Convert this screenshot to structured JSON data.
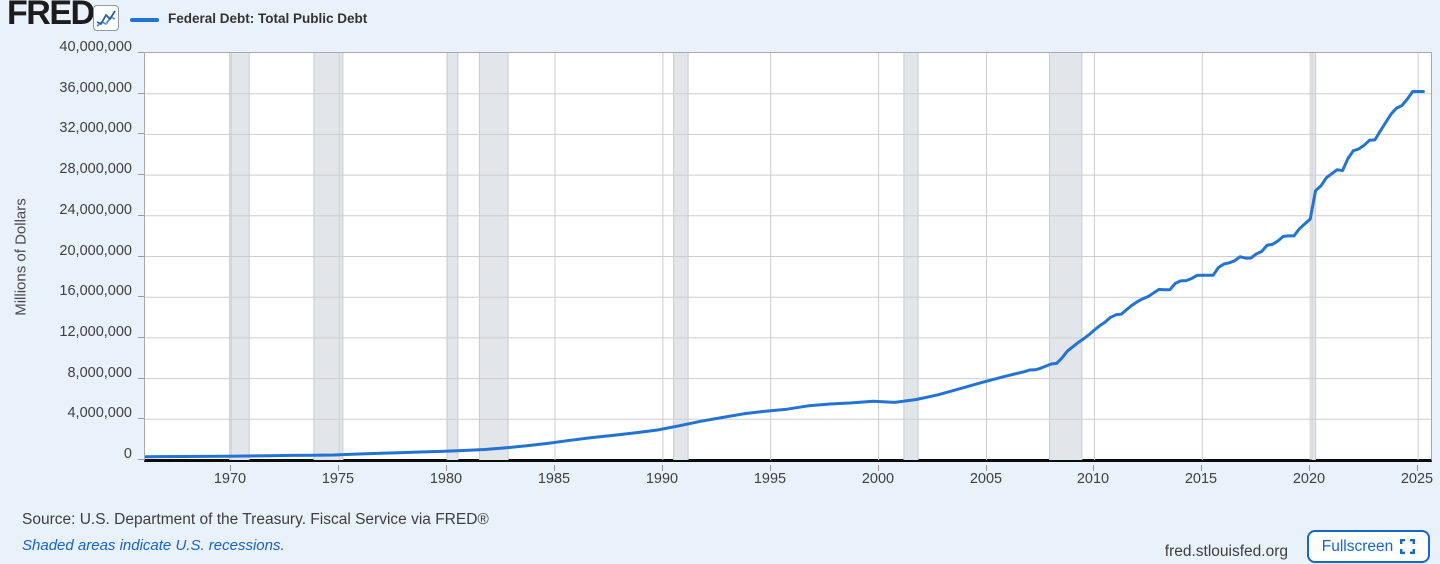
{
  "header": {
    "logo_text": "FRED",
    "logo_registered": "®",
    "logo_icon": "sparkline-chart-icon",
    "legend_label": "Federal Debt: Total Public Debt"
  },
  "footer": {
    "source_text": "Source: U.S. Department of the Treasury. Fiscal Service via FRED®",
    "recession_note": "Shaded areas indicate U.S. recessions.",
    "site_url": "fred.stlouisfed.org",
    "fullscreen_label": "Fullscreen",
    "fullscreen_icon": "fullscreen-expand-icon"
  },
  "colors": {
    "page_background": "#e9f1fa",
    "plot_background": "#ffffff",
    "line": "#2373d2",
    "grid": "#cdcdcd",
    "plot_border": "#a9a9a9",
    "zero_axis": "#0c0c0c",
    "recession_band": "#e2e5e9",
    "recession_band_edge": "#c7ccd1",
    "link_blue": "#1862c6",
    "button_blue": "#1766c8",
    "axis_text": "#404040"
  },
  "chart_data": {
    "type": "line",
    "title": "Federal Debt: Total Public Debt",
    "xlabel": "",
    "ylabel": "Millions of Dollars",
    "legend_position": "top-left header row",
    "grid": true,
    "xlim": [
      1966.0,
      2025.6
    ],
    "ylim": [
      0,
      40000000
    ],
    "x_ticks": [
      {
        "v": 1970,
        "label": "1970"
      },
      {
        "v": 1975,
        "label": "1975"
      },
      {
        "v": 1980,
        "label": "1980"
      },
      {
        "v": 1985,
        "label": "1985"
      },
      {
        "v": 1990,
        "label": "1990"
      },
      {
        "v": 1995,
        "label": "1995"
      },
      {
        "v": 2000,
        "label": "2000"
      },
      {
        "v": 2005,
        "label": "2005"
      },
      {
        "v": 2010,
        "label": "2010"
      },
      {
        "v": 2015,
        "label": "2015"
      },
      {
        "v": 2020,
        "label": "2020"
      },
      {
        "v": 2025,
        "label": "2025"
      }
    ],
    "y_ticks": [
      {
        "v": 0,
        "label": "0"
      },
      {
        "v": 4000000,
        "label": "4,000,000"
      },
      {
        "v": 8000000,
        "label": "8,000,000"
      },
      {
        "v": 12000000,
        "label": "12,000,000"
      },
      {
        "v": 16000000,
        "label": "16,000,000"
      },
      {
        "v": 20000000,
        "label": "20,000,000"
      },
      {
        "v": 24000000,
        "label": "24,000,000"
      },
      {
        "v": 28000000,
        "label": "28,000,000"
      },
      {
        "v": 32000000,
        "label": "32,000,000"
      },
      {
        "v": 36000000,
        "label": "36,000,000"
      },
      {
        "v": 40000000,
        "label": "40,000,000"
      }
    ],
    "recessions": [
      [
        1969.92,
        1970.83
      ],
      [
        1973.83,
        1975.17
      ],
      [
        1980.0,
        1980.5
      ],
      [
        1981.5,
        1982.83
      ],
      [
        1990.5,
        1991.17
      ],
      [
        2001.17,
        2001.83
      ],
      [
        2007.92,
        2009.42
      ],
      [
        2020.08,
        2020.25
      ]
    ],
    "series": [
      {
        "name": "Federal Debt: Total Public Debt",
        "units": "Millions of Dollars",
        "points": [
          [
            1966.0,
            320999
          ],
          [
            1966.75,
            329319
          ],
          [
            1967.75,
            344663
          ],
          [
            1968.75,
            358029
          ],
          [
            1969.75,
            368226
          ],
          [
            1970.75,
            389158
          ],
          [
            1971.75,
            424131
          ],
          [
            1972.75,
            449298
          ],
          [
            1973.75,
            469899
          ],
          [
            1974.75,
            492665
          ],
          [
            1975.75,
            576649
          ],
          [
            1976.75,
            653544
          ],
          [
            1977.75,
            718943
          ],
          [
            1978.75,
            789207
          ],
          [
            1979.75,
            845116
          ],
          [
            1980.75,
            930210
          ],
          [
            1981.75,
            1028729
          ],
          [
            1982.75,
            1197073
          ],
          [
            1983.75,
            1410702
          ],
          [
            1984.75,
            1662966
          ],
          [
            1985.75,
            1945941
          ],
          [
            1986.75,
            2214835
          ],
          [
            1987.75,
            2431715
          ],
          [
            1988.75,
            2684392
          ],
          [
            1989.75,
            2952994
          ],
          [
            1990.75,
            3364820
          ],
          [
            1991.75,
            3801698
          ],
          [
            1992.75,
            4177009
          ],
          [
            1993.75,
            4535687
          ],
          [
            1994.75,
            4800149
          ],
          [
            1995.75,
            4988665
          ],
          [
            1996.75,
            5323172
          ],
          [
            1997.75,
            5502388
          ],
          [
            1998.75,
            5614217
          ],
          [
            1999.75,
            5776091
          ],
          [
            2000.75,
            5662216
          ],
          [
            2001.75,
            5943439
          ],
          [
            2002.75,
            6405707
          ],
          [
            2003.75,
            6998021
          ],
          [
            2004.75,
            7596142
          ],
          [
            2005.75,
            8170424
          ],
          [
            2006.75,
            8680224
          ],
          [
            2007.0,
            8849663
          ],
          [
            2007.25,
            8867999
          ],
          [
            2007.5,
            9007653
          ],
          [
            2007.75,
            9229172
          ],
          [
            2008.0,
            9437593
          ],
          [
            2008.25,
            9492006
          ],
          [
            2008.5,
            10024724
          ],
          [
            2008.75,
            10699805
          ],
          [
            2009.0,
            11126941
          ],
          [
            2009.25,
            11545275
          ],
          [
            2009.5,
            11909829
          ],
          [
            2009.75,
            12311350
          ],
          [
            2010.0,
            12773123
          ],
          [
            2010.25,
            13201809
          ],
          [
            2010.5,
            13561623
          ],
          [
            2010.75,
            14025215
          ],
          [
            2011.0,
            14270115
          ],
          [
            2011.25,
            14343088
          ],
          [
            2011.5,
            14790340
          ],
          [
            2011.75,
            15222940
          ],
          [
            2012.0,
            15582079
          ],
          [
            2012.25,
            15856367
          ],
          [
            2012.5,
            16066241
          ],
          [
            2012.75,
            16432730
          ],
          [
            2013.0,
            16771378
          ],
          [
            2013.25,
            16738184
          ],
          [
            2013.5,
            16738650
          ],
          [
            2013.75,
            17351970
          ],
          [
            2014.0,
            17601227
          ],
          [
            2014.25,
            17632606
          ],
          [
            2014.5,
            17824071
          ],
          [
            2014.75,
            18141444
          ],
          [
            2015.0,
            18152056
          ],
          [
            2015.25,
            18151998
          ],
          [
            2015.5,
            18150618
          ],
          [
            2015.75,
            18922179
          ],
          [
            2016.0,
            19264939
          ],
          [
            2016.25,
            19381591
          ],
          [
            2016.5,
            19573445
          ],
          [
            2016.75,
            19976827
          ],
          [
            2017.0,
            19846420
          ],
          [
            2017.25,
            19844554
          ],
          [
            2017.5,
            20244900
          ],
          [
            2017.75,
            20492747
          ],
          [
            2018.0,
            21089864
          ],
          [
            2018.25,
            21195070
          ],
          [
            2018.5,
            21516058
          ],
          [
            2018.75,
            21974096
          ],
          [
            2019.0,
            22028026
          ],
          [
            2019.25,
            22023544
          ],
          [
            2019.5,
            22719402
          ],
          [
            2019.75,
            23201380
          ],
          [
            2020.0,
            23686955
          ],
          [
            2020.25,
            26477098
          ],
          [
            2020.5,
            26945391
          ],
          [
            2020.75,
            27747798
          ],
          [
            2021.0,
            28132570
          ],
          [
            2021.25,
            28529436
          ],
          [
            2021.5,
            28428919
          ],
          [
            2021.75,
            29617215
          ],
          [
            2022.0,
            30400690
          ],
          [
            2022.25,
            30568582
          ],
          [
            2022.5,
            30928912
          ],
          [
            2022.75,
            31419689
          ],
          [
            2023.0,
            31458438
          ],
          [
            2023.25,
            32332274
          ],
          [
            2023.5,
            33167334
          ],
          [
            2023.75,
            34001494
          ],
          [
            2024.0,
            34586500
          ],
          [
            2024.25,
            34831634
          ],
          [
            2024.5,
            35464674
          ],
          [
            2024.75,
            36218605
          ],
          [
            2025.0,
            36214226
          ],
          [
            2025.25,
            36214226
          ]
        ]
      }
    ]
  }
}
